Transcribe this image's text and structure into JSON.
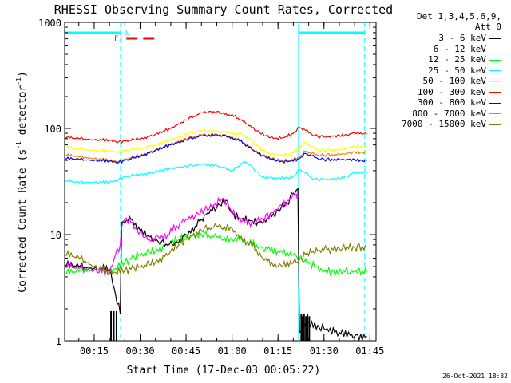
{
  "chart_data": {
    "type": "line",
    "title": "RHESSI Observing Summary Count Rates, Corrected",
    "xlabel": "Start Time (17-Dec-03 00:05:22)",
    "ylabel": "Corrected Count Rate (s⁻¹ detector⁻¹)",
    "ylabel_parts": {
      "main": "Corrected Count Rate (s",
      "exp1": "-1",
      "mid": " detector",
      "exp2": "-1",
      "end": ")"
    },
    "yscale": "log",
    "ylim": [
      1,
      1000
    ],
    "y_ticks": [
      "1",
      "10",
      "100",
      "1000"
    ],
    "xlim_minutes": [
      5.37,
      107.0
    ],
    "x_ticks": [
      {
        "minute": 15,
        "label": "00:15"
      },
      {
        "minute": 30,
        "label": "00:30"
      },
      {
        "minute": 45,
        "label": "00:45"
      },
      {
        "minute": 60,
        "label": "01:00"
      },
      {
        "minute": 75,
        "label": "01:15"
      },
      {
        "minute": 90,
        "label": "01:30"
      },
      {
        "minute": 105,
        "label": "01:45"
      }
    ],
    "legend_header": [
      "Det 1,3,4,5,6,9,",
      "Att 0"
    ],
    "flags": [
      {
        "label": "N",
        "color": "#00ffff"
      },
      {
        "label": "F",
        "color": "#ff0000"
      }
    ],
    "footer_timestamp": "26-Oct-2021 18:32",
    "series": [
      {
        "name": "3 - 6 keV",
        "color": "#000000",
        "x": [
          5.4,
          10,
          15,
          20,
          23.5,
          24,
          27,
          30,
          33,
          36,
          39,
          42,
          45,
          48,
          50,
          52,
          55,
          58,
          60,
          63,
          66,
          69,
          72,
          75,
          78,
          80,
          81.5,
          82,
          85,
          90,
          95,
          100,
          104
        ],
        "y": [
          5.2,
          5.0,
          4.8,
          4.7,
          1.8,
          13,
          14,
          11,
          9.5,
          8.5,
          8,
          8.5,
          10,
          12,
          14,
          16,
          18,
          21,
          16,
          14,
          13.5,
          13,
          14,
          17,
          20,
          24,
          27,
          1.2,
          1.5,
          1.3,
          1.2,
          1.1,
          1.1
        ]
      },
      {
        "name": "6 - 12 keV",
        "color": "#ff00ff",
        "x": [
          5.4,
          10,
          15,
          20,
          22,
          23.5,
          24,
          25,
          27,
          29,
          31,
          33,
          36,
          39,
          42,
          45,
          48,
          51,
          54,
          57,
          59,
          61,
          64,
          67,
          70,
          73,
          76,
          79,
          81,
          81.5
        ],
        "y": [
          5.0,
          4.8,
          4.6,
          4.3,
          6.5,
          8,
          12,
          14,
          13,
          11,
          9.5,
          9,
          9.5,
          10,
          12,
          14,
          15,
          17,
          19,
          22,
          18,
          15,
          13,
          13,
          14,
          16,
          19,
          22,
          24,
          23
        ]
      },
      {
        "name": "12 - 25 keV",
        "color": "#00ff00",
        "x": [
          5.4,
          10,
          15,
          20,
          25,
          30,
          35,
          40,
          45,
          50,
          55,
          60,
          62,
          65,
          70,
          75,
          80,
          82,
          85,
          90,
          100,
          104
        ],
        "y": [
          4.3,
          4.5,
          4.6,
          4.4,
          5.5,
          6.5,
          7.0,
          8.5,
          9.5,
          10,
          9.5,
          9,
          9.5,
          8.5,
          7.5,
          7,
          6.5,
          6,
          5.5,
          4.5,
          4.5,
          4.5
        ]
      },
      {
        "name": "25 - 50 keV",
        "color": "#00ffff",
        "x": [
          5.4,
          10,
          15,
          20,
          23,
          25,
          30,
          35,
          40,
          45,
          50,
          55,
          58,
          60,
          62,
          64,
          66,
          68,
          70,
          75,
          80,
          82,
          84,
          86,
          88,
          90,
          95,
          100,
          104
        ],
        "y": [
          32,
          31,
          31,
          31,
          33,
          35,
          37,
          39,
          42,
          44,
          46,
          45,
          42,
          40,
          44,
          49,
          45,
          39,
          35,
          34,
          35,
          41,
          38,
          34,
          33,
          33,
          34,
          38,
          38
        ]
      },
      {
        "name": "50 - 100 keV",
        "color": "#ffff00",
        "x": [
          5.4,
          10,
          15,
          20,
          23,
          25,
          30,
          35,
          40,
          45,
          50,
          55,
          58,
          61,
          64,
          67,
          70,
          73,
          76,
          79,
          82,
          84,
          86,
          88,
          90,
          95,
          100,
          104
        ],
        "y": [
          66,
          64,
          62,
          61,
          60,
          62,
          65,
          70,
          78,
          88,
          95,
          95,
          92,
          90,
          86,
          74,
          62,
          57,
          56,
          57,
          66,
          74,
          66,
          63,
          62,
          63,
          68,
          68
        ]
      },
      {
        "name": "100 - 300 keV",
        "color": "#ff0000",
        "x": [
          5.4,
          10,
          15,
          20,
          23,
          25,
          30,
          35,
          40,
          45,
          50,
          53,
          56,
          59,
          62,
          65,
          68,
          71,
          74,
          77,
          80,
          82,
          84,
          86,
          88,
          90,
          95,
          100,
          104
        ],
        "y": [
          82,
          80,
          78,
          77,
          75,
          76,
          80,
          88,
          100,
          120,
          140,
          145,
          142,
          135,
          125,
          110,
          95,
          85,
          81,
          82,
          90,
          102,
          96,
          88,
          84,
          83,
          86,
          90,
          88
        ]
      },
      {
        "name": "300 - 800 keV",
        "color": "#0000ff",
        "x": [
          5.4,
          10,
          15,
          20,
          23,
          25,
          30,
          35,
          40,
          45,
          50,
          55,
          58,
          61,
          64,
          67,
          70,
          73,
          76,
          79,
          82,
          84,
          86,
          88,
          90,
          95,
          100,
          104
        ],
        "y": [
          52,
          51,
          50,
          49,
          48,
          50,
          55,
          62,
          70,
          78,
          85,
          87,
          85,
          80,
          72,
          62,
          55,
          51,
          49,
          49,
          52,
          58,
          55,
          52,
          51,
          51,
          51,
          50
        ]
      },
      {
        "name": "800 - 7000 keV",
        "color": "#ff8000",
        "x": [
          5.4,
          10,
          15,
          20,
          23,
          25,
          30,
          35,
          40,
          45,
          50,
          55,
          58,
          61,
          64,
          67,
          70,
          73,
          76,
          79,
          82,
          84,
          86,
          88,
          90,
          95,
          100,
          104
        ],
        "y": [
          56,
          54,
          52,
          50,
          49,
          51,
          56,
          63,
          71,
          80,
          87,
          88,
          86,
          81,
          73,
          63,
          56,
          52,
          50,
          50,
          54,
          61,
          58,
          56,
          56,
          57,
          60,
          60
        ]
      },
      {
        "name": "7000 - 15000 keV",
        "color": "#808000",
        "x": [
          5.4,
          10,
          15,
          20,
          25,
          30,
          35,
          40,
          45,
          50,
          55,
          60,
          62,
          65,
          68,
          70,
          75,
          80,
          82,
          84,
          86,
          88,
          90,
          95,
          100,
          104
        ],
        "y": [
          6.5,
          6.0,
          5.0,
          4.3,
          4.6,
          5.0,
          5.5,
          7.0,
          9.0,
          11,
          12,
          11.5,
          10,
          8.5,
          7.2,
          6.0,
          5.0,
          5.5,
          5.8,
          6.5,
          6.8,
          7.0,
          7.2,
          7.4,
          7.6,
          7.6
        ]
      }
    ],
    "spikes_3_6": [
      {
        "x": 20.5,
        "y": 1.9
      },
      {
        "x": 21.4,
        "y": 1.9
      },
      {
        "x": 22.3,
        "y": 1.9
      },
      {
        "x": 82.6,
        "y": 1.8
      },
      {
        "x": 83.0,
        "y": 1.7
      },
      {
        "x": 83.5,
        "y": 1.8
      },
      {
        "x": 84.1,
        "y": 1.7
      },
      {
        "x": 84.6,
        "y": 1.8
      },
      {
        "x": 85.2,
        "y": 1.7
      }
    ],
    "events": {
      "attenuator_dashed_minutes": [
        23.6,
        103.3
      ],
      "attenuator_solid_minutes": [
        81.7
      ],
      "night_bars": [
        {
          "from": 5.37,
          "to": 23.6
        },
        {
          "from": 81.7,
          "to": 103.3
        }
      ],
      "flare_bar": {
        "from": 25.5,
        "to": 36.0
      },
      "flare_marker_minute": 23.8
    }
  }
}
